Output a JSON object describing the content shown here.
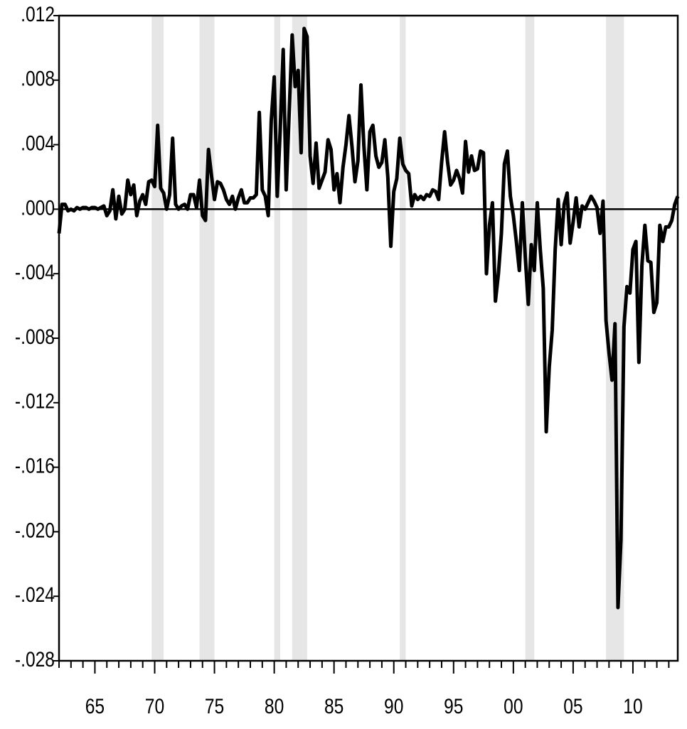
{
  "chart_data": {
    "type": "line",
    "color": "#000000",
    "grid": false,
    "reference_line": 0,
    "shade_color": "#e6e6e6",
    "xlim": [
      1962,
      2013.75
    ],
    "ylim": [
      -0.028,
      0.012
    ],
    "xticks": [
      {
        "value": 1965,
        "label": "65"
      },
      {
        "value": 1970,
        "label": "70"
      },
      {
        "value": 1975,
        "label": "75"
      },
      {
        "value": 1980,
        "label": "80"
      },
      {
        "value": 1985,
        "label": "85"
      },
      {
        "value": 1990,
        "label": "90"
      },
      {
        "value": 1995,
        "label": "95"
      },
      {
        "value": 2000,
        "label": "00"
      },
      {
        "value": 2005,
        "label": "05"
      },
      {
        "value": 2010,
        "label": "10"
      }
    ],
    "xminorticks": [
      1962,
      1963,
      1964,
      1966,
      1967,
      1968,
      1969,
      1971,
      1972,
      1973,
      1974,
      1976,
      1977,
      1978,
      1979,
      1981,
      1982,
      1983,
      1984,
      1986,
      1987,
      1988,
      1989,
      1991,
      1992,
      1993,
      1994,
      1996,
      1997,
      1998,
      1999,
      2001,
      2002,
      2003,
      2004,
      2006,
      2007,
      2008,
      2009,
      2011,
      2012,
      2013
    ],
    "yticks": [
      {
        "value": 0.012,
        "label": ".012"
      },
      {
        "value": 0.008,
        "label": ".008"
      },
      {
        "value": 0.004,
        "label": ".004"
      },
      {
        "value": 0,
        "label": ".000"
      },
      {
        "value": -0.004,
        "label": "-.004"
      },
      {
        "value": -0.008,
        "label": "-.008"
      },
      {
        "value": -0.012,
        "label": "-.012"
      },
      {
        "value": -0.016,
        "label": "-.016"
      },
      {
        "value": -0.02,
        "label": "-.020"
      },
      {
        "value": -0.024,
        "label": "-.024"
      },
      {
        "value": -0.028,
        "label": "-.028"
      }
    ],
    "shaded_regions": [
      [
        1969.75,
        1970.75
      ],
      [
        1973.75,
        1975.0
      ],
      [
        1980.0,
        1980.5
      ],
      [
        1981.5,
        1982.75
      ],
      [
        1990.5,
        1991.0
      ],
      [
        2001.0,
        2001.75
      ],
      [
        2007.75,
        2009.25
      ]
    ],
    "x": [
      1962,
      1962.25,
      1962.5,
      1962.75,
      1963,
      1963.25,
      1963.5,
      1963.75,
      1964,
      1964.25,
      1964.5,
      1964.75,
      1965,
      1965.25,
      1965.5,
      1965.75,
      1966,
      1966.25,
      1966.5,
      1966.75,
      1967,
      1967.25,
      1967.5,
      1967.75,
      1968,
      1968.25,
      1968.5,
      1968.75,
      1969,
      1969.25,
      1969.5,
      1969.75,
      1970,
      1970.25,
      1970.5,
      1970.75,
      1971,
      1971.25,
      1971.5,
      1971.75,
      1972,
      1972.25,
      1972.5,
      1972.75,
      1973,
      1973.25,
      1973.5,
      1973.75,
      1974,
      1974.25,
      1974.5,
      1974.75,
      1975,
      1975.25,
      1975.5,
      1975.75,
      1976,
      1976.25,
      1976.5,
      1976.75,
      1977,
      1977.25,
      1977.5,
      1977.75,
      1978,
      1978.25,
      1978.5,
      1978.75,
      1979,
      1979.25,
      1979.5,
      1979.75,
      1980,
      1980.25,
      1980.5,
      1980.75,
      1981,
      1981.25,
      1981.5,
      1981.75,
      1982,
      1982.25,
      1982.5,
      1982.75,
      1983,
      1983.25,
      1983.5,
      1983.75,
      1984,
      1984.25,
      1984.5,
      1984.75,
      1985,
      1985.25,
      1985.5,
      1985.75,
      1986,
      1986.25,
      1986.5,
      1986.75,
      1987,
      1987.25,
      1987.5,
      1987.75,
      1988,
      1988.25,
      1988.5,
      1988.75,
      1989,
      1989.25,
      1989.5,
      1989.75,
      1990,
      1990.25,
      1990.5,
      1990.75,
      1991,
      1991.25,
      1991.5,
      1991.75,
      1992,
      1992.25,
      1992.5,
      1992.75,
      1993,
      1993.25,
      1993.5,
      1993.75,
      1994,
      1994.25,
      1994.5,
      1994.75,
      1995,
      1995.25,
      1995.5,
      1995.75,
      1996,
      1996.25,
      1996.5,
      1996.75,
      1997,
      1997.25,
      1997.5,
      1997.75,
      1998,
      1998.25,
      1998.5,
      1998.75,
      1999,
      1999.25,
      1999.5,
      1999.75,
      2000,
      2000.25,
      2000.5,
      2000.75,
      2001,
      2001.25,
      2001.5,
      2001.75,
      2002,
      2002.25,
      2002.5,
      2002.75,
      2003,
      2003.25,
      2003.5,
      2003.75,
      2004,
      2004.25,
      2004.5,
      2004.75,
      2005,
      2005.25,
      2005.5,
      2005.75,
      2006,
      2006.25,
      2006.5,
      2006.75,
      2007,
      2007.25,
      2007.5,
      2007.75,
      2008,
      2008.25,
      2008.5,
      2008.75,
      2009,
      2009.25,
      2009.5,
      2009.75,
      2010,
      2010.25,
      2010.5,
      2010.75,
      2011,
      2011.25,
      2011.5,
      2011.75,
      2012,
      2012.25,
      2012.5,
      2012.75,
      2013,
      2013.25,
      2013.5,
      2013.75
    ],
    "values": [
      -0.0015,
      0.0003,
      0.0003,
      -0.0001,
      0.0,
      -0.0001,
      0.0001,
      0.0,
      0.0001,
      0.0001,
      0.0,
      0.0001,
      0.0001,
      0.0,
      0.0001,
      0.0002,
      -0.0004,
      -0.0001,
      0.0012,
      -0.0006,
      0.0008,
      -0.0003,
      0.0,
      0.0018,
      0.0009,
      0.0015,
      -0.0004,
      0.0005,
      0.0009,
      0.0003,
      0.0017,
      0.0018,
      0.0014,
      0.0052,
      0.0013,
      0.001,
      0.0,
      0.0009,
      0.0044,
      0.0003,
      0.0,
      0.0002,
      0.0003,
      0.0,
      0.0009,
      0.0009,
      0.0001,
      0.0018,
      -0.0004,
      -0.0007,
      0.0037,
      0.0021,
      0.0006,
      0.0017,
      0.0016,
      0.0012,
      0.0006,
      0.0003,
      0.0008,
      0.0,
      0.0007,
      0.0012,
      0.0004,
      0.0004,
      0.0007,
      0.0007,
      0.0009,
      0.006,
      0.0012,
      0.0008,
      -0.0004,
      0.0055,
      0.0082,
      0.0008,
      0.0049,
      0.0099,
      0.0012,
      0.006,
      0.0108,
      0.0076,
      0.0086,
      0.0035,
      0.0112,
      0.0107,
      0.0033,
      0.0016,
      0.0041,
      0.0013,
      0.0018,
      0.0023,
      0.0043,
      0.0037,
      0.0012,
      0.0022,
      0.0004,
      0.0026,
      0.004,
      0.0058,
      0.0039,
      0.0017,
      0.003,
      0.0077,
      0.0039,
      0.0012,
      0.0048,
      0.0052,
      0.0033,
      0.0026,
      0.0029,
      0.0043,
      0.002,
      -0.0023,
      0.0011,
      0.0019,
      0.0044,
      0.0028,
      0.0024,
      0.0022,
      0.0002,
      0.0009,
      0.0006,
      0.0008,
      0.0006,
      0.0009,
      0.0008,
      0.0012,
      0.0011,
      0.0006,
      0.0029,
      0.0048,
      0.0029,
      0.0015,
      0.0018,
      0.0024,
      0.0019,
      0.001,
      0.0042,
      0.0023,
      0.0033,
      0.0024,
      0.0025,
      0.0036,
      0.0035,
      -0.004,
      -0.001,
      0.0004,
      -0.0057,
      -0.004,
      -0.0015,
      0.0028,
      0.0036,
      0.0008,
      -0.0004,
      -0.002,
      -0.0038,
      0.0004,
      -0.003,
      -0.0059,
      -0.0022,
      -0.0038,
      0.0004,
      -0.0025,
      -0.0049,
      -0.0138,
      -0.0098,
      -0.0075,
      -0.0025,
      0.0006,
      -0.0022,
      0.0003,
      0.001,
      -0.0021,
      -0.0008,
      0.0007,
      -0.0011,
      0.0002,
      0.0,
      0.0004,
      0.0008,
      0.0005,
      0.0001,
      -0.0015,
      0.0005,
      -0.0069,
      -0.0089,
      -0.0106,
      -0.0071,
      -0.0247,
      -0.0205,
      -0.0073,
      -0.0048,
      -0.0052,
      -0.0025,
      -0.002,
      -0.0095,
      -0.0035,
      -0.001,
      -0.0032,
      -0.0033,
      -0.0064,
      -0.0058,
      -0.001,
      -0.002,
      -0.0011,
      -0.0011,
      -0.0007,
      0.0003,
      0.0008
    ]
  }
}
